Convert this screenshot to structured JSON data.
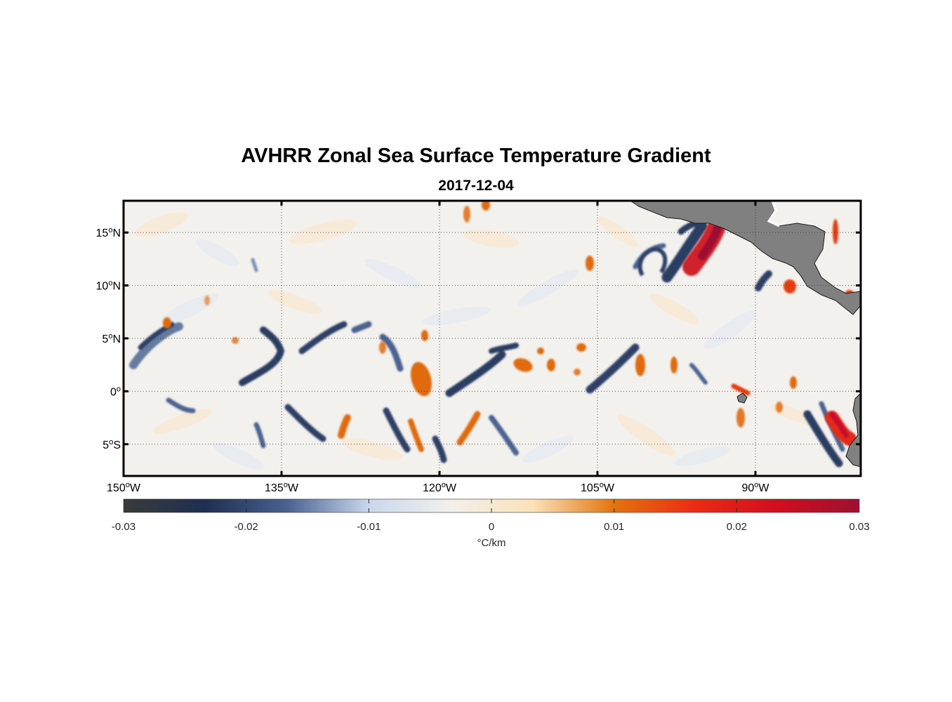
{
  "title": "AVHRR Zonal Sea Surface Temperature Gradient",
  "subtitle": "2017-12-04",
  "map": {
    "type": "geographic-field-map",
    "lon_range": [
      -150,
      -80
    ],
    "lat_range": [
      -8,
      18
    ],
    "x_ticks": [
      {
        "value": -150,
        "label": "150",
        "deg": "o",
        "hemi": "W"
      },
      {
        "value": -135,
        "label": "135",
        "deg": "o",
        "hemi": "W"
      },
      {
        "value": -120,
        "label": "120",
        "deg": "o",
        "hemi": "W"
      },
      {
        "value": -105,
        "label": "105",
        "deg": "o",
        "hemi": "W"
      },
      {
        "value": -90,
        "label": "90",
        "deg": "o",
        "hemi": "W"
      }
    ],
    "y_ticks": [
      {
        "value": 15,
        "label": "15",
        "deg": "o",
        "hemi": "N"
      },
      {
        "value": 10,
        "label": "10",
        "deg": "o",
        "hemi": "N"
      },
      {
        "value": 5,
        "label": "5",
        "deg": "o",
        "hemi": "N"
      },
      {
        "value": 0,
        "label": "0",
        "deg": "o",
        "hemi": ""
      },
      {
        "value": -5,
        "label": "5",
        "deg": "o",
        "hemi": "S"
      }
    ],
    "grid": true,
    "land_color": "#808080",
    "colors": {
      "strong_negative": "#2a3a5c",
      "negative": "#5a6f98",
      "positive": "#e06a10",
      "strong_positive": "#c8102e"
    }
  },
  "colorbar": {
    "min": -0.03,
    "max": 0.03,
    "ticks": [
      "-0.03",
      "-0.02",
      "-0.01",
      "0",
      "0.01",
      "0.02",
      "0.03"
    ],
    "unit": "°C/km",
    "stops": [
      "#3a3a3a",
      "#1f2f52",
      "#4a6191",
      "#c9d7ec",
      "#f2f0ec",
      "#fbe2b8",
      "#e2740f",
      "#ec2a14",
      "#d10e1e",
      "#9e1030"
    ]
  }
}
